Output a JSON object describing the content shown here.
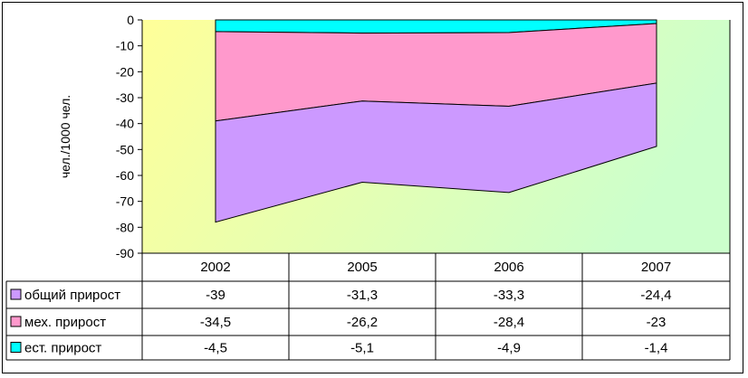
{
  "chart_data": {
    "type": "area",
    "ylabel": "чел./1000 чел.",
    "ylim": [
      -90,
      0
    ],
    "yticks": [
      0,
      -10,
      -20,
      -30,
      -40,
      -50,
      -60,
      -70,
      -80,
      -90
    ],
    "categories": [
      "2002",
      "2005",
      "2006",
      "2007"
    ],
    "series": [
      {
        "name": "общий прирост",
        "values": [
          -39,
          -31.3,
          -33.3,
          -24.4
        ],
        "labels": [
          "-39",
          "-31,3",
          "-33,3",
          "-24,4"
        ],
        "color": "#cc99ff"
      },
      {
        "name": "мех. прирост",
        "values": [
          -34.5,
          -26.2,
          -28.4,
          -23
        ],
        "labels": [
          "-34,5",
          "-26,2",
          "-28,4",
          "-23"
        ],
        "color": "#ff99cc"
      },
      {
        "name": "ест. прирост",
        "values": [
          -4.5,
          -5.1,
          -4.9,
          -1.4
        ],
        "labels": [
          "-4,5",
          "-5,1",
          "-4,9",
          "-1,4"
        ],
        "color": "#00ffff"
      }
    ],
    "stacked": true,
    "grid": false,
    "legend": "data-table",
    "background": {
      "from": "#ffff99",
      "to": "#ccffcc"
    }
  }
}
